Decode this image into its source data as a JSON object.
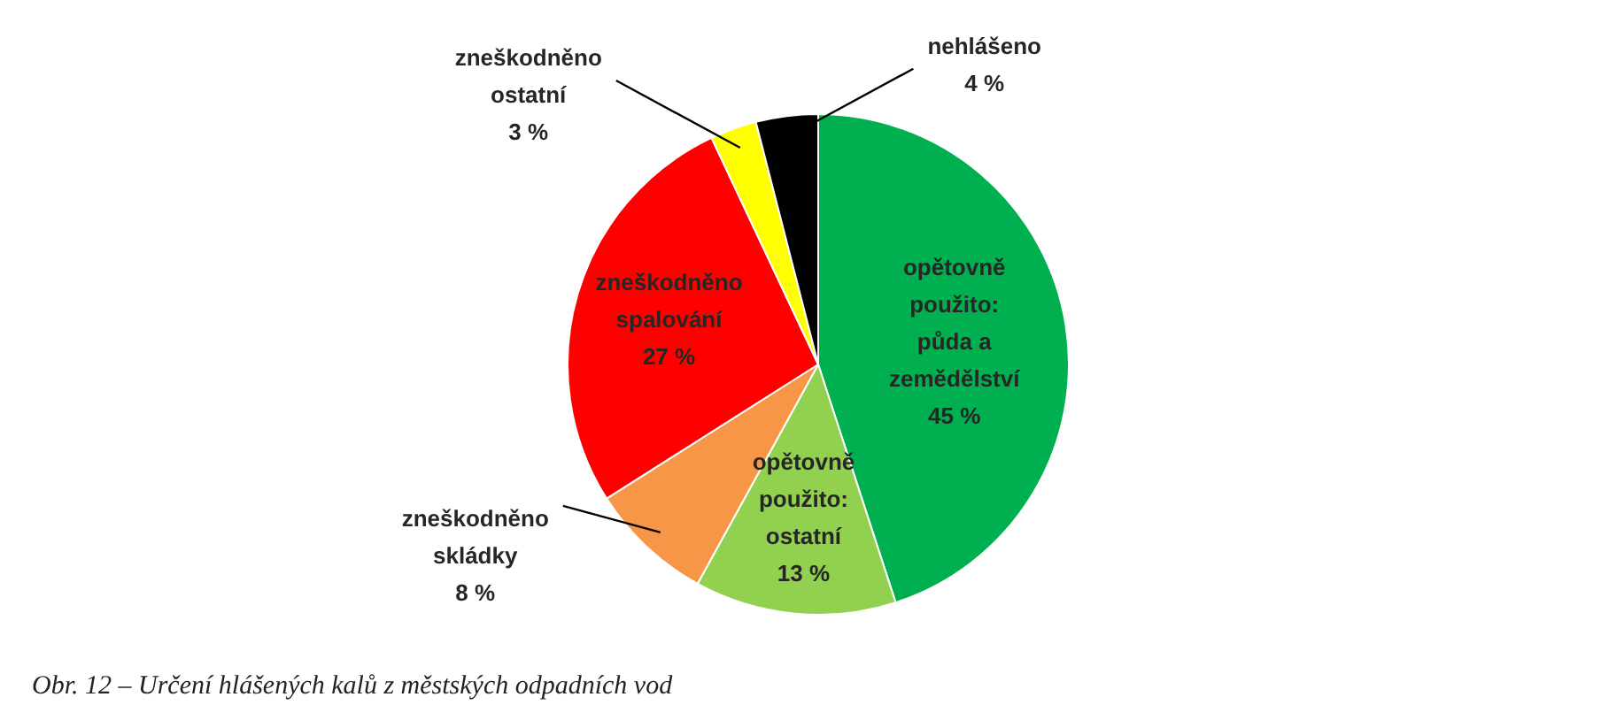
{
  "chart_data": {
    "type": "pie",
    "categories": [
      "opětovně použito: půda a zemědělství",
      "opětovně použito: ostatní",
      "zneškodněno skládky",
      "zneškodněno spalování",
      "zneškodněno ostatní",
      "nehlášeno"
    ],
    "values": [
      45,
      13,
      8,
      27,
      3,
      4
    ],
    "value_labels": [
      "45 %",
      "13 %",
      "8 %",
      "27 %",
      "3 %",
      "4 %"
    ],
    "colors": [
      "#00b050",
      "#92d050",
      "#f79646",
      "#ff0000",
      "#ffff00",
      "#000000"
    ],
    "legend": false,
    "annotations": [
      "Obr. 12 – Určení hlášených kalů z městských odpadních vod"
    ]
  }
}
